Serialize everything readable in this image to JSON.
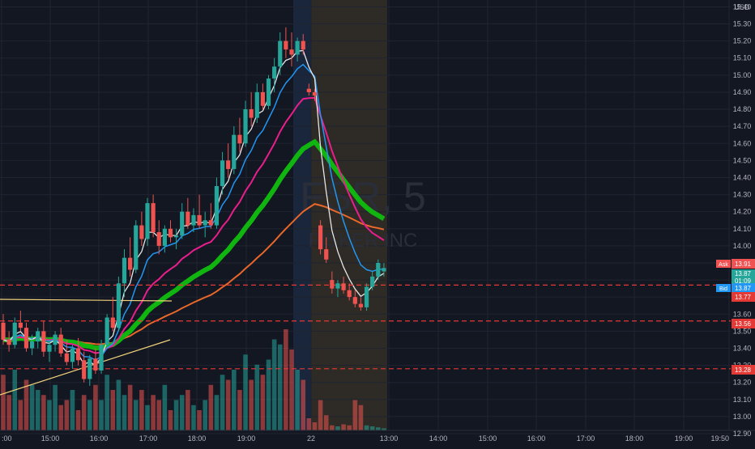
{
  "colors": {
    "background": "#131722",
    "grid": "#1f2430",
    "up": "#26a69a",
    "down": "#ef5350",
    "axis_text": "#b2b5be",
    "ask": "#f05252",
    "bid": "#2196f3",
    "level_line": "#e53935",
    "last_price": "#26a69a",
    "session_pre": "#1d2a44",
    "session_post": "#3a3326"
  },
  "header": {
    "currency": "USD",
    "watermark_symbol": "FSR, 5",
    "watermark_name": "FISKER INC"
  },
  "price_tags": {
    "ask_label": "Ask",
    "ask_value": "13.91",
    "last_value": "13.87",
    "countdown": "01:09",
    "bid_label": "Bid",
    "bid_value": "13.87",
    "level_1": "13.77",
    "level_2": "13.56",
    "level_3": "13.28"
  },
  "chart_data": {
    "type": "candlestick",
    "symbol": "FSR",
    "interval": "5",
    "y_axis": {
      "ticks": [
        "15.40",
        "15.30",
        "15.20",
        "15.10",
        "15.00",
        "14.90",
        "14.80",
        "14.70",
        "14.60",
        "14.50",
        "14.40",
        "14.30",
        "14.20",
        "14.10",
        "14.00",
        "13.90",
        "13.80",
        "13.70",
        "13.60",
        "13.50",
        "13.40",
        "13.30",
        "13.20",
        "13.10",
        "13.00",
        "12.90"
      ],
      "min": 12.9,
      "max": 15.44
    },
    "x_axis": {
      "ticks": [
        ":00",
        "15:00",
        "16:00",
        "17:00",
        "18:00",
        "19:00",
        "22",
        "13:00",
        "14:00",
        "15:00",
        "16:00",
        "17:00",
        "18:00",
        "19:00",
        "19:50"
      ]
    },
    "horizontal_levels": [
      13.77,
      13.56,
      13.28
    ],
    "candles_ohlc": [
      [
        13.55,
        13.6,
        13.42,
        13.45
      ],
      [
        13.45,
        13.5,
        13.38,
        13.42
      ],
      [
        13.42,
        13.58,
        13.4,
        13.55
      ],
      [
        13.55,
        13.62,
        13.5,
        13.52
      ],
      [
        13.52,
        13.55,
        13.38,
        13.4
      ],
      [
        13.4,
        13.48,
        13.36,
        13.44
      ],
      [
        13.44,
        13.52,
        13.4,
        13.5
      ],
      [
        13.5,
        13.56,
        13.35,
        13.38
      ],
      [
        13.38,
        13.45,
        13.32,
        13.42
      ],
      [
        13.42,
        13.5,
        13.38,
        13.48
      ],
      [
        13.48,
        13.52,
        13.35,
        13.37
      ],
      [
        13.37,
        13.45,
        13.3,
        13.32
      ],
      [
        13.32,
        13.42,
        13.28,
        13.4
      ],
      [
        13.4,
        13.46,
        13.3,
        13.33
      ],
      [
        13.33,
        13.38,
        13.2,
        13.22
      ],
      [
        13.22,
        13.36,
        13.18,
        13.34
      ],
      [
        13.34,
        13.4,
        13.25,
        13.27
      ],
      [
        13.27,
        13.45,
        13.25,
        13.42
      ],
      [
        13.42,
        13.6,
        13.4,
        13.58
      ],
      [
        13.58,
        13.7,
        13.5,
        13.52
      ],
      [
        13.52,
        13.82,
        13.5,
        13.78
      ],
      [
        13.78,
        13.98,
        13.7,
        13.93
      ],
      [
        13.93,
        14.05,
        13.82,
        13.86
      ],
      [
        13.86,
        14.15,
        13.84,
        14.12
      ],
      [
        14.12,
        14.2,
        14.0,
        14.04
      ],
      [
        14.04,
        14.28,
        14.0,
        14.25
      ],
      [
        14.25,
        14.3,
        14.05,
        14.08
      ],
      [
        14.08,
        14.15,
        13.95,
        14.0
      ],
      [
        14.0,
        14.12,
        13.96,
        14.1
      ],
      [
        14.1,
        14.15,
        14.02,
        14.05
      ],
      [
        14.05,
        14.1,
        13.98,
        14.06
      ],
      [
        14.06,
        14.25,
        14.04,
        14.2
      ],
      [
        14.2,
        14.28,
        14.1,
        14.12
      ],
      [
        14.12,
        14.22,
        14.08,
        14.18
      ],
      [
        14.18,
        14.3,
        14.1,
        14.12
      ],
      [
        14.12,
        14.2,
        14.05,
        14.15
      ],
      [
        14.15,
        14.25,
        14.1,
        14.12
      ],
      [
        14.12,
        14.4,
        14.1,
        14.35
      ],
      [
        14.35,
        14.55,
        14.3,
        14.5
      ],
      [
        14.5,
        14.6,
        14.4,
        14.45
      ],
      [
        14.45,
        14.7,
        14.42,
        14.65
      ],
      [
        14.65,
        14.75,
        14.55,
        14.6
      ],
      [
        14.6,
        14.85,
        14.58,
        14.8
      ],
      [
        14.8,
        14.9,
        14.7,
        14.75
      ],
      [
        14.75,
        14.95,
        14.72,
        14.9
      ],
      [
        14.9,
        14.95,
        14.8,
        14.82
      ],
      [
        14.82,
        15.0,
        14.8,
        14.98
      ],
      [
        14.98,
        15.1,
        14.9,
        15.05
      ],
      [
        15.05,
        15.25,
        15.0,
        15.2
      ],
      [
        15.2,
        15.28,
        15.1,
        15.15
      ],
      [
        15.15,
        15.25,
        15.05,
        15.12
      ],
      [
        15.12,
        15.22,
        15.08,
        15.2
      ],
      [
        15.2,
        15.24,
        15.12,
        15.15
      ],
      [
        14.92,
        14.95,
        14.88,
        14.9
      ],
      [
        14.9,
        14.92,
        14.85,
        14.88
      ],
      [
        14.12,
        14.15,
        13.95,
        13.98
      ],
      [
        13.98,
        14.05,
        13.9,
        13.92
      ],
      [
        13.8,
        13.85,
        13.72,
        13.75
      ],
      [
        13.75,
        13.8,
        13.7,
        13.78
      ],
      [
        13.78,
        13.82,
        13.72,
        13.74
      ],
      [
        13.74,
        13.78,
        13.68,
        13.7
      ],
      [
        13.7,
        13.74,
        13.64,
        13.66
      ],
      [
        13.66,
        13.7,
        13.62,
        13.64
      ],
      [
        13.64,
        13.78,
        13.62,
        13.76
      ],
      [
        13.76,
        13.85,
        13.74,
        13.82
      ],
      [
        13.82,
        13.92,
        13.8,
        13.9
      ],
      [
        13.85,
        13.9,
        13.82,
        13.87
      ]
    ],
    "volume_relative": [
      0.55,
      0.35,
      0.6,
      0.3,
      0.5,
      0.45,
      0.4,
      0.35,
      0.3,
      0.45,
      0.25,
      0.3,
      0.4,
      0.2,
      0.35,
      0.3,
      0.45,
      0.3,
      0.55,
      0.4,
      0.5,
      0.35,
      0.45,
      0.3,
      0.4,
      0.25,
      0.35,
      0.3,
      0.45,
      0.2,
      0.3,
      0.35,
      0.4,
      0.25,
      0.2,
      0.3,
      0.45,
      0.35,
      0.55,
      0.5,
      0.6,
      0.4,
      0.75,
      0.5,
      0.65,
      0.55,
      0.7,
      0.9,
      0.85,
      1.0,
      0.8,
      0.6,
      0.5,
      0.12,
      0.08,
      0.3,
      0.15,
      0.05,
      0.04,
      0.06,
      0.05,
      0.3,
      0.25,
      0.05,
      0.04,
      0.03,
      0.02
    ]
  }
}
